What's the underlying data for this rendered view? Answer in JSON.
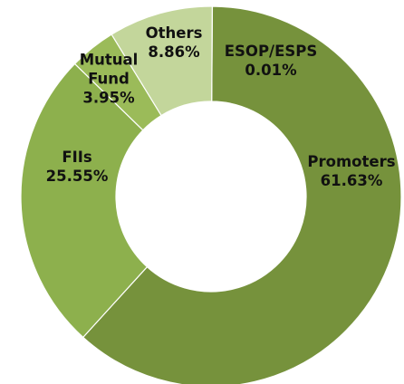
{
  "chart_data": {
    "type": "pie",
    "donut": true,
    "legend": "none",
    "slices": [
      {
        "label": "Promoters",
        "lines": [
          "Promoters"
        ],
        "value": 61.63,
        "value_text": "61.63%",
        "color": "#76923c"
      },
      {
        "label": "FIIs",
        "lines": [
          "FIIs"
        ],
        "value": 25.55,
        "value_text": "25.55%",
        "color": "#8db04d"
      },
      {
        "label": "Mutual Fund",
        "lines": [
          "Mutual",
          "Fund"
        ],
        "value": 3.95,
        "value_text": "3.95%",
        "color": "#9bbb59"
      },
      {
        "label": "Others",
        "lines": [
          "Others"
        ],
        "value": 8.86,
        "value_text": "8.86%",
        "color": "#c3d69b"
      },
      {
        "label": "ESOP/ESPS",
        "lines": [
          "ESOP/ESPS"
        ],
        "value": 0.01,
        "value_text": "0.01%",
        "color": "#4f6228"
      }
    ]
  }
}
